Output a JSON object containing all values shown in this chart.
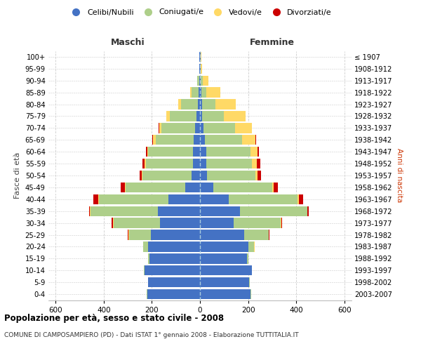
{
  "age_groups": [
    "0-4",
    "5-9",
    "10-14",
    "15-19",
    "20-24",
    "25-29",
    "30-34",
    "35-39",
    "40-44",
    "45-49",
    "50-54",
    "55-59",
    "60-64",
    "65-69",
    "70-74",
    "75-79",
    "80-84",
    "85-89",
    "90-94",
    "95-99",
    "100+"
  ],
  "birth_years": [
    "2003-2007",
    "1998-2002",
    "1993-1997",
    "1988-1992",
    "1983-1987",
    "1978-1982",
    "1973-1977",
    "1968-1972",
    "1963-1967",
    "1958-1962",
    "1953-1957",
    "1948-1952",
    "1943-1947",
    "1938-1942",
    "1933-1937",
    "1928-1932",
    "1923-1927",
    "1918-1922",
    "1913-1917",
    "1908-1912",
    "≤ 1907"
  ],
  "maschi": {
    "celibi": [
      220,
      215,
      230,
      210,
      215,
      205,
      165,
      175,
      130,
      60,
      35,
      30,
      30,
      25,
      20,
      15,
      10,
      5,
      3,
      2,
      2
    ],
    "coniugati": [
      2,
      2,
      2,
      5,
      20,
      90,
      195,
      280,
      290,
      250,
      205,
      195,
      185,
      160,
      140,
      110,
      70,
      30,
      8,
      2,
      2
    ],
    "vedovi": [
      0,
      0,
      0,
      0,
      2,
      2,
      2,
      2,
      2,
      2,
      3,
      5,
      5,
      10,
      10,
      15,
      10,
      5,
      2,
      0,
      0
    ],
    "divorziati": [
      0,
      0,
      0,
      0,
      0,
      2,
      5,
      5,
      20,
      18,
      8,
      8,
      5,
      2,
      2,
      0,
      0,
      0,
      0,
      0,
      0
    ]
  },
  "femmine": {
    "nubili": [
      210,
      205,
      215,
      195,
      200,
      185,
      140,
      165,
      120,
      55,
      30,
      25,
      25,
      20,
      15,
      10,
      8,
      5,
      3,
      2,
      2
    ],
    "coniugate": [
      2,
      2,
      2,
      5,
      25,
      100,
      195,
      280,
      285,
      245,
      200,
      190,
      185,
      155,
      130,
      90,
      55,
      20,
      8,
      2,
      2
    ],
    "vedove": [
      0,
      0,
      0,
      0,
      2,
      2,
      2,
      2,
      5,
      5,
      10,
      20,
      30,
      55,
      70,
      90,
      85,
      60,
      25,
      5,
      2
    ],
    "divorziate": [
      0,
      0,
      0,
      0,
      0,
      2,
      5,
      5,
      20,
      20,
      15,
      15,
      5,
      2,
      2,
      0,
      0,
      0,
      0,
      0,
      0
    ]
  },
  "colors": {
    "celibi": "#4472C4",
    "coniugati": "#AECF8A",
    "vedovi": "#FFD966",
    "divorziati": "#CC0000"
  },
  "xlim": 630,
  "title": "Popolazione per età, sesso e stato civile - 2008",
  "subtitle": "COMUNE DI CAMPOSAMPIERO (PD) - Dati ISTAT 1° gennaio 2008 - Elaborazione TUTTITALIA.IT",
  "ylabel_left": "Fasce di età",
  "ylabel_right": "Anni di nascita",
  "xlabel_left": "Maschi",
  "xlabel_right": "Femmine"
}
